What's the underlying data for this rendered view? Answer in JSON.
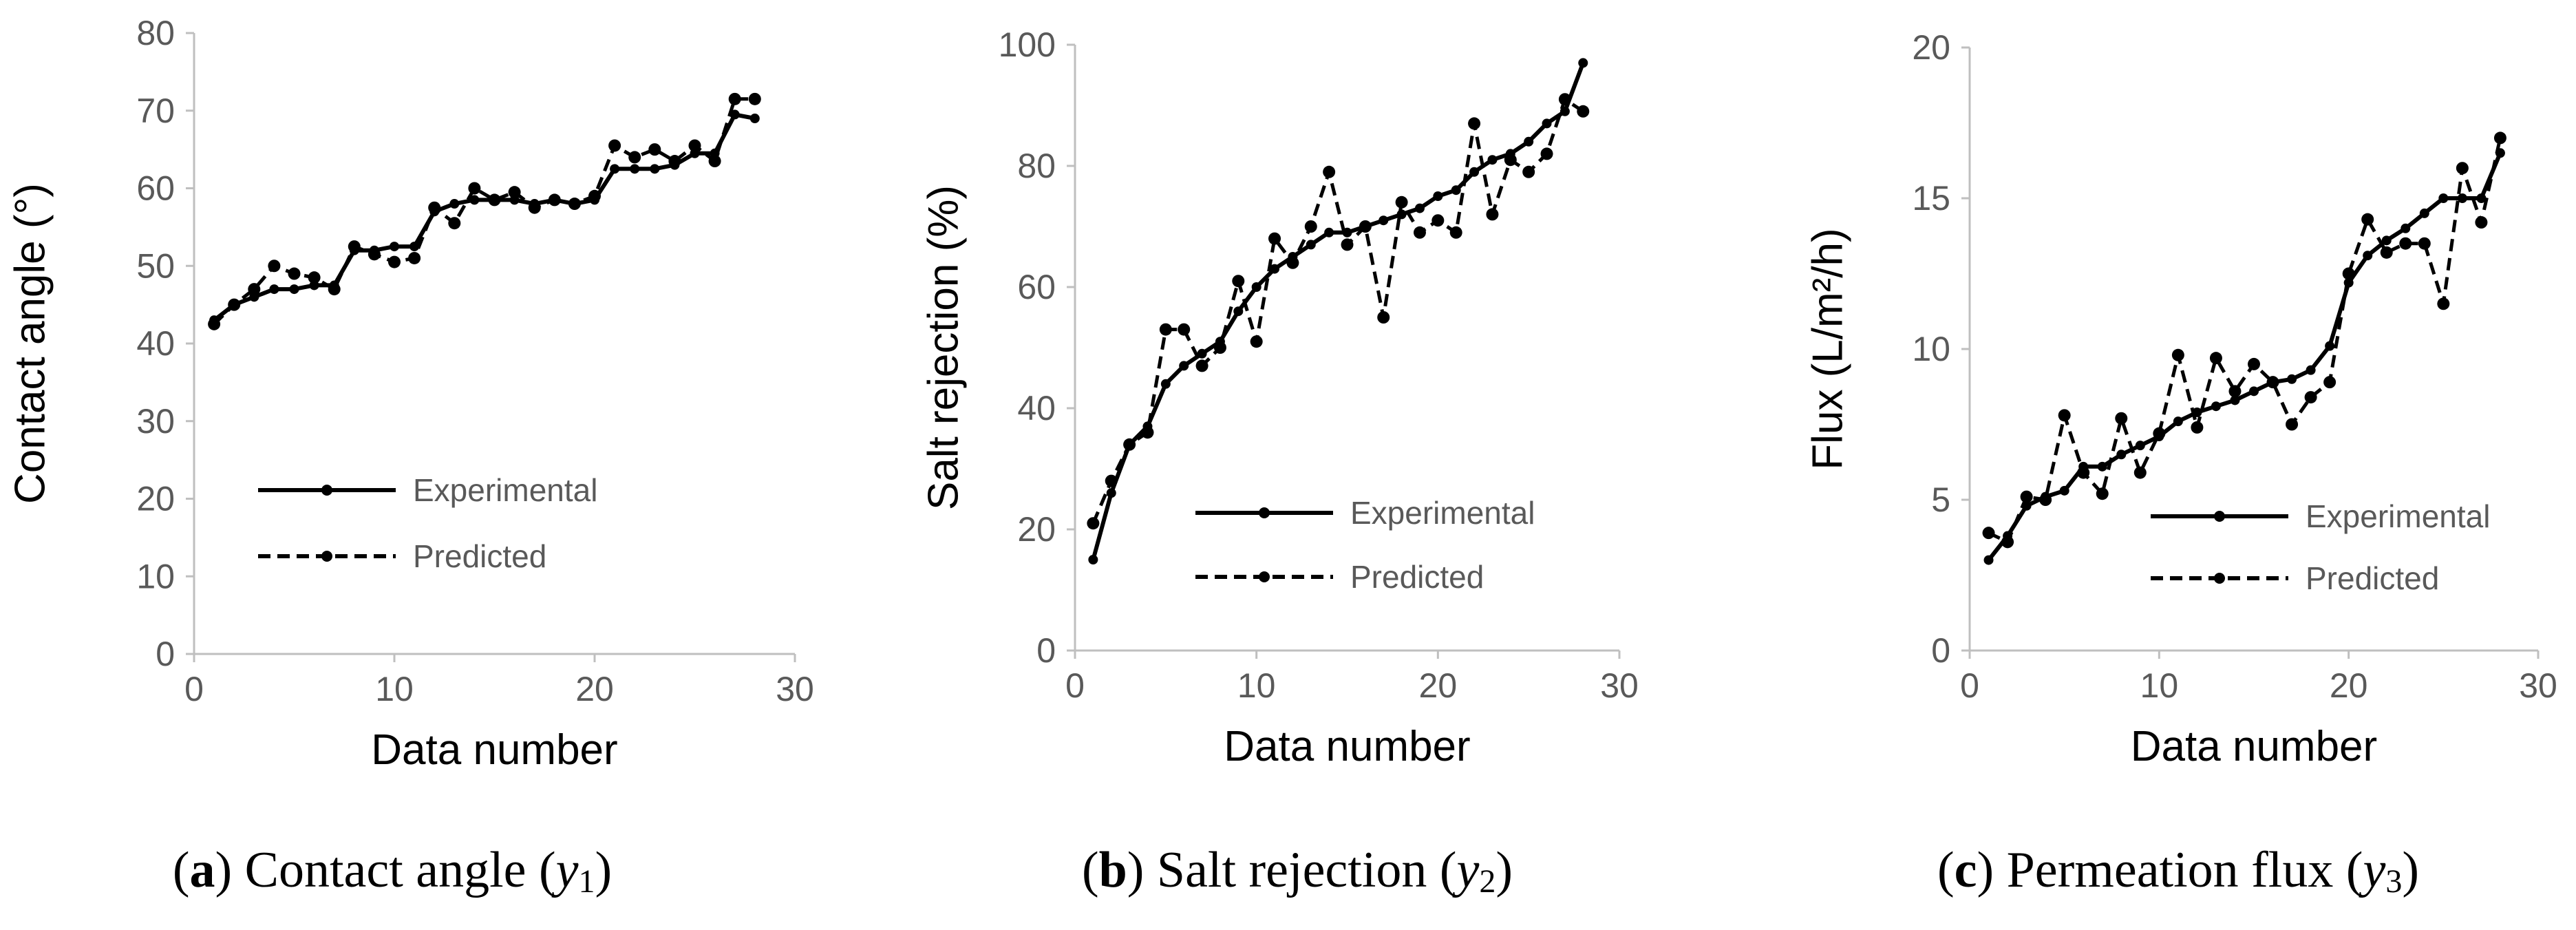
{
  "chart_data": [
    {
      "type": "line",
      "xlabel": "Data number",
      "ylabel": "Contact angle (°)",
      "xlim": [
        0,
        30
      ],
      "ylim": [
        0,
        80
      ],
      "xticks": [
        0,
        10,
        20,
        30
      ],
      "yticks": [
        0,
        10,
        20,
        30,
        40,
        50,
        60,
        70,
        80
      ],
      "x": [
        1,
        2,
        3,
        4,
        5,
        6,
        7,
        8,
        9,
        10,
        11,
        12,
        13,
        14,
        15,
        16,
        17,
        18,
        19,
        20,
        21,
        22,
        23,
        24,
        25,
        26,
        27,
        28
      ],
      "series": [
        {
          "name": "Experimental",
          "style": "solid",
          "values": [
            43,
            45,
            46,
            47,
            47,
            47.5,
            47.5,
            52,
            52,
            52.5,
            52.5,
            57,
            58,
            58.5,
            58.5,
            58.5,
            58,
            58.5,
            58,
            58.5,
            62.5,
            62.5,
            62.5,
            63,
            64.5,
            64.5,
            69.5,
            69
          ]
        },
        {
          "name": "Predicted",
          "style": "dashed",
          "values": [
            42.5,
            45,
            47,
            50,
            49,
            48.5,
            47,
            52.5,
            51.5,
            50.5,
            51,
            57.5,
            55.5,
            60,
            58.5,
            59.5,
            57.5,
            58.5,
            58,
            59,
            65.5,
            64,
            65,
            63.5,
            65.5,
            63.5,
            71.5,
            71.5
          ]
        }
      ],
      "legend_position": "lower-right",
      "caption": {
        "label": "a",
        "text": "Contact angle",
        "var": "y",
        "sub": "1"
      }
    },
    {
      "type": "line",
      "xlabel": "Data number",
      "ylabel": "Salt rejection (%)",
      "xlim": [
        0,
        30
      ],
      "ylim": [
        0,
        100
      ],
      "xticks": [
        0,
        10,
        20,
        30
      ],
      "yticks": [
        0,
        20,
        40,
        60,
        80,
        100
      ],
      "x": [
        1,
        2,
        3,
        4,
        5,
        6,
        7,
        8,
        9,
        10,
        11,
        12,
        13,
        14,
        15,
        16,
        17,
        18,
        19,
        20,
        21,
        22,
        23,
        24,
        25,
        26,
        27,
        28
      ],
      "series": [
        {
          "name": "Experimental",
          "style": "solid",
          "values": [
            15,
            26,
            34,
            37,
            44,
            47,
            49,
            51,
            56,
            60,
            63,
            65,
            67,
            69,
            69,
            70,
            71,
            72,
            73,
            75,
            76,
            79,
            81,
            82,
            84,
            87,
            89,
            97
          ]
        },
        {
          "name": "Predicted",
          "style": "dashed",
          "values": [
            21,
            28,
            34,
            36,
            53,
            53,
            47,
            50,
            61,
            51,
            68,
            64,
            70,
            79,
            67,
            70,
            55,
            74,
            69,
            71,
            69,
            87,
            72,
            81,
            79,
            82,
            91,
            89
          ]
        }
      ],
      "legend_position": "lower-right",
      "caption": {
        "label": "b",
        "text": "Salt rejection",
        "var": "y",
        "sub": "2"
      }
    },
    {
      "type": "line",
      "xlabel": "Data number",
      "ylabel": "Flux  (L/m²/h)",
      "xlim": [
        0,
        30
      ],
      "ylim": [
        0,
        20
      ],
      "xticks": [
        0,
        10,
        20,
        30
      ],
      "yticks": [
        0,
        5,
        10,
        15,
        20
      ],
      "x": [
        1,
        2,
        3,
        4,
        5,
        6,
        7,
        8,
        9,
        10,
        11,
        12,
        13,
        14,
        15,
        16,
        17,
        18,
        19,
        20,
        21,
        22,
        23,
        24,
        25,
        26,
        27,
        28
      ],
      "series": [
        {
          "name": "Experimental",
          "style": "solid",
          "values": [
            3,
            3.8,
            4.8,
            5.1,
            5.3,
            6.1,
            6.1,
            6.5,
            6.8,
            7.1,
            7.6,
            7.9,
            8.1,
            8.3,
            8.6,
            8.9,
            9,
            9.3,
            10.1,
            12.2,
            13.1,
            13.6,
            14,
            14.5,
            15,
            15,
            15,
            16.5
          ]
        },
        {
          "name": "Predicted",
          "style": "dashed",
          "values": [
            3.9,
            3.6,
            5.1,
            5,
            7.8,
            5.9,
            5.2,
            7.7,
            5.9,
            7.2,
            9.8,
            7.4,
            9.7,
            8.6,
            9.5,
            8.9,
            7.5,
            8.4,
            8.9,
            12.5,
            14.3,
            13.2,
            13.5,
            13.5,
            11.5,
            16,
            14.2,
            17
          ]
        }
      ],
      "legend_position": "lower-right",
      "caption": {
        "label": "c",
        "text": "Permeation flux",
        "var": "y",
        "sub": "3"
      }
    }
  ],
  "legend": {
    "experimental": "Experimental",
    "predicted": "Predicted"
  },
  "colors": {
    "line": "#000000",
    "axis": "#bfbfbf",
    "tick_text": "#595959",
    "legend_text": "#595959"
  }
}
